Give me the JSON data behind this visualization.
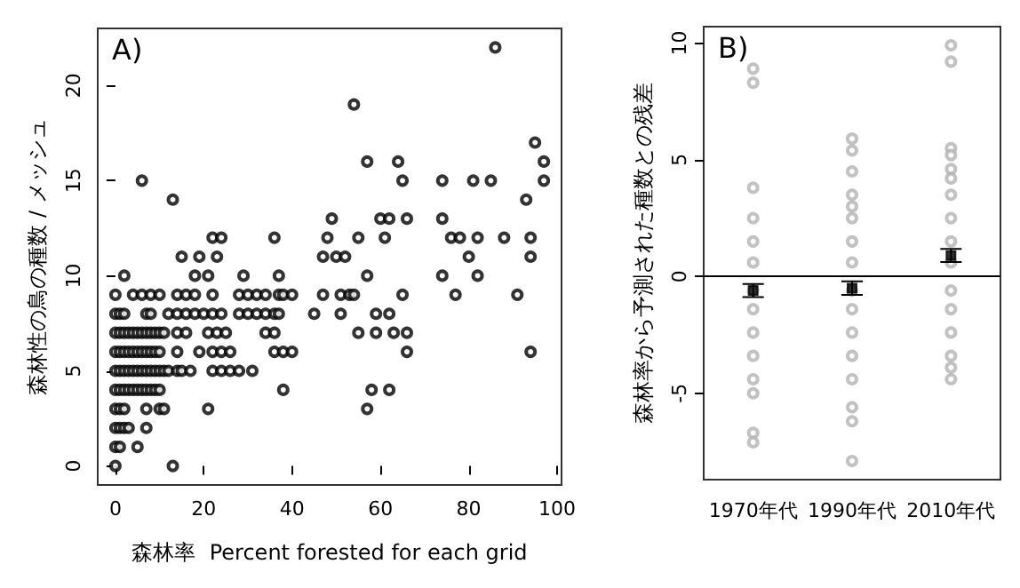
{
  "chart_data": [
    {
      "type": "scatter",
      "xlabel": "森林率  Percent forested for each grid",
      "ylabel": "森林性の鳥の種数 / メッシュ",
      "annotations": [
        "A)"
      ],
      "xlim": [
        -4,
        101
      ],
      "ylim": [
        -1,
        23
      ],
      "xticks": [
        0,
        20,
        40,
        60,
        80,
        100
      ],
      "yticks": [
        0,
        5,
        10,
        15,
        20
      ],
      "grid": false,
      "marker": "circle",
      "series": [
        {
          "color": "#000000",
          "x": [
            86,
            54,
            95,
            57,
            64,
            97,
            6,
            65,
            74,
            81,
            85,
            97,
            13,
            93,
            49,
            60,
            62,
            66,
            74,
            22,
            24,
            36,
            48,
            55,
            61,
            76,
            78,
            82,
            88,
            94,
            15,
            19,
            23,
            47,
            50,
            52,
            80,
            94,
            2,
            18,
            21,
            29,
            37,
            57,
            74,
            82,
            0,
            4,
            6,
            8,
            10,
            14,
            16,
            18,
            22,
            28,
            30,
            32,
            34,
            37,
            38,
            40,
            47,
            51,
            53,
            54,
            65,
            77,
            91,
            0,
            1,
            2,
            7,
            8,
            12,
            14,
            16,
            18,
            20,
            22,
            24,
            28,
            30,
            32,
            34,
            36,
            37,
            45,
            51,
            59,
            62,
            0,
            1,
            2,
            3,
            4,
            5,
            6,
            7,
            8,
            9,
            10,
            11,
            14,
            16,
            21,
            23,
            25,
            34,
            36,
            55,
            59,
            63,
            66,
            0,
            1,
            2,
            3,
            4,
            5,
            6,
            7,
            8,
            9,
            10,
            14,
            19,
            22,
            24,
            26,
            36,
            38,
            40,
            66,
            94,
            0,
            1,
            2,
            3,
            4,
            5,
            6,
            7,
            8,
            9,
            10,
            11,
            12,
            14,
            15,
            17,
            22,
            24,
            26,
            28,
            31,
            0,
            1,
            2,
            3,
            4,
            5,
            6,
            7,
            8,
            9,
            10,
            38,
            58,
            62,
            0,
            1,
            2,
            7,
            10,
            11,
            21,
            57,
            0,
            1,
            2,
            3,
            7,
            0,
            1,
            5,
            0,
            13
          ],
          "values": [
            22,
            19,
            17,
            16,
            16,
            16,
            15,
            15,
            15,
            15,
            15,
            15,
            14,
            14,
            13,
            13,
            13,
            13,
            13,
            12,
            12,
            12,
            12,
            12,
            12,
            12,
            12,
            12,
            12,
            12,
            11,
            11,
            11,
            11,
            11,
            11,
            11,
            11,
            10,
            10,
            10,
            10,
            10,
            10,
            10,
            10,
            9,
            9,
            9,
            9,
            9,
            9,
            9,
            9,
            9,
            9,
            9,
            9,
            9,
            9,
            9,
            9,
            9,
            9,
            9,
            9,
            9,
            9,
            9,
            8,
            8,
            8,
            8,
            8,
            8,
            8,
            8,
            8,
            8,
            8,
            8,
            8,
            8,
            8,
            8,
            8,
            8,
            8,
            8,
            8,
            8,
            7,
            7,
            7,
            7,
            7,
            7,
            7,
            7,
            7,
            7,
            7,
            7,
            7,
            7,
            7,
            7,
            7,
            7,
            7,
            7,
            7,
            7,
            7,
            6,
            6,
            6,
            6,
            6,
            6,
            6,
            6,
            6,
            6,
            6,
            6,
            6,
            6,
            6,
            6,
            6,
            6,
            6,
            6,
            6,
            5,
            5,
            5,
            5,
            5,
            5,
            5,
            5,
            5,
            5,
            5,
            5,
            5,
            5,
            5,
            5,
            5,
            5,
            5,
            5,
            5,
            4,
            4,
            4,
            4,
            4,
            4,
            4,
            4,
            4,
            4,
            4,
            4,
            4,
            4,
            3,
            3,
            3,
            3,
            3,
            3,
            3,
            3,
            2,
            2,
            2,
            2,
            2,
            1,
            1,
            1,
            0,
            0
          ]
        }
      ]
    },
    {
      "type": "scatter",
      "ylabel": "森林率から予測された種数との残差",
      "annotations": [
        "B)"
      ],
      "categories": [
        "1970年代",
        "1990年代",
        "2010年代"
      ],
      "ylim": [
        -8.7,
        10.7
      ],
      "yticks": [
        -5,
        0,
        5,
        10
      ],
      "grid": false,
      "marker": "circle",
      "ref_lines": [
        {
          "axis": "y",
          "value": 0,
          "color": "#000000"
        }
      ],
      "series": [
        {
          "color": "#b3b3b3",
          "x": [
            "1970年代",
            "1970年代",
            "1970年代",
            "1970年代",
            "1970年代",
            "1970年代",
            "1970年代",
            "1970年代",
            "1970年代",
            "1970年代",
            "1970年代",
            "1970年代",
            "1970年代",
            "1970年代",
            "1990年代",
            "1990年代",
            "1990年代",
            "1990年代",
            "1990年代",
            "1990年代",
            "1990年代",
            "1990年代",
            "1990年代",
            "1990年代",
            "1990年代",
            "1990年代",
            "1990年代",
            "1990年代",
            "1990年代",
            "1990年代",
            "2010年代",
            "2010年代",
            "2010年代",
            "2010年代",
            "2010年代",
            "2010年代",
            "2010年代",
            "2010年代",
            "2010年代",
            "2010年代",
            "2010年代",
            "2010年代",
            "2010年代",
            "2010年代",
            "2010年代",
            "2010年代"
          ],
          "values": [
            8.9,
            8.3,
            3.8,
            2.5,
            1.5,
            0.6,
            -0.6,
            -1.4,
            -2.4,
            -3.4,
            -4.4,
            -5.0,
            -6.7,
            -7.1,
            5.9,
            5.4,
            4.5,
            3.5,
            3.0,
            2.5,
            1.5,
            0.6,
            -0.6,
            -1.4,
            -2.4,
            -3.4,
            -4.4,
            -5.6,
            -6.2,
            -7.9,
            9.9,
            9.2,
            5.5,
            5.2,
            4.6,
            4.2,
            3.5,
            2.5,
            1.5,
            0.6,
            -0.6,
            -1.4,
            -2.4,
            -3.4,
            -3.9,
            -4.4
          ]
        },
        {
          "color": "#000000",
          "marker": "square",
          "values": [
            -0.6,
            -0.5,
            0.9
          ],
          "errors": [
            0.28,
            0.29,
            0.28
          ]
        }
      ]
    }
  ]
}
